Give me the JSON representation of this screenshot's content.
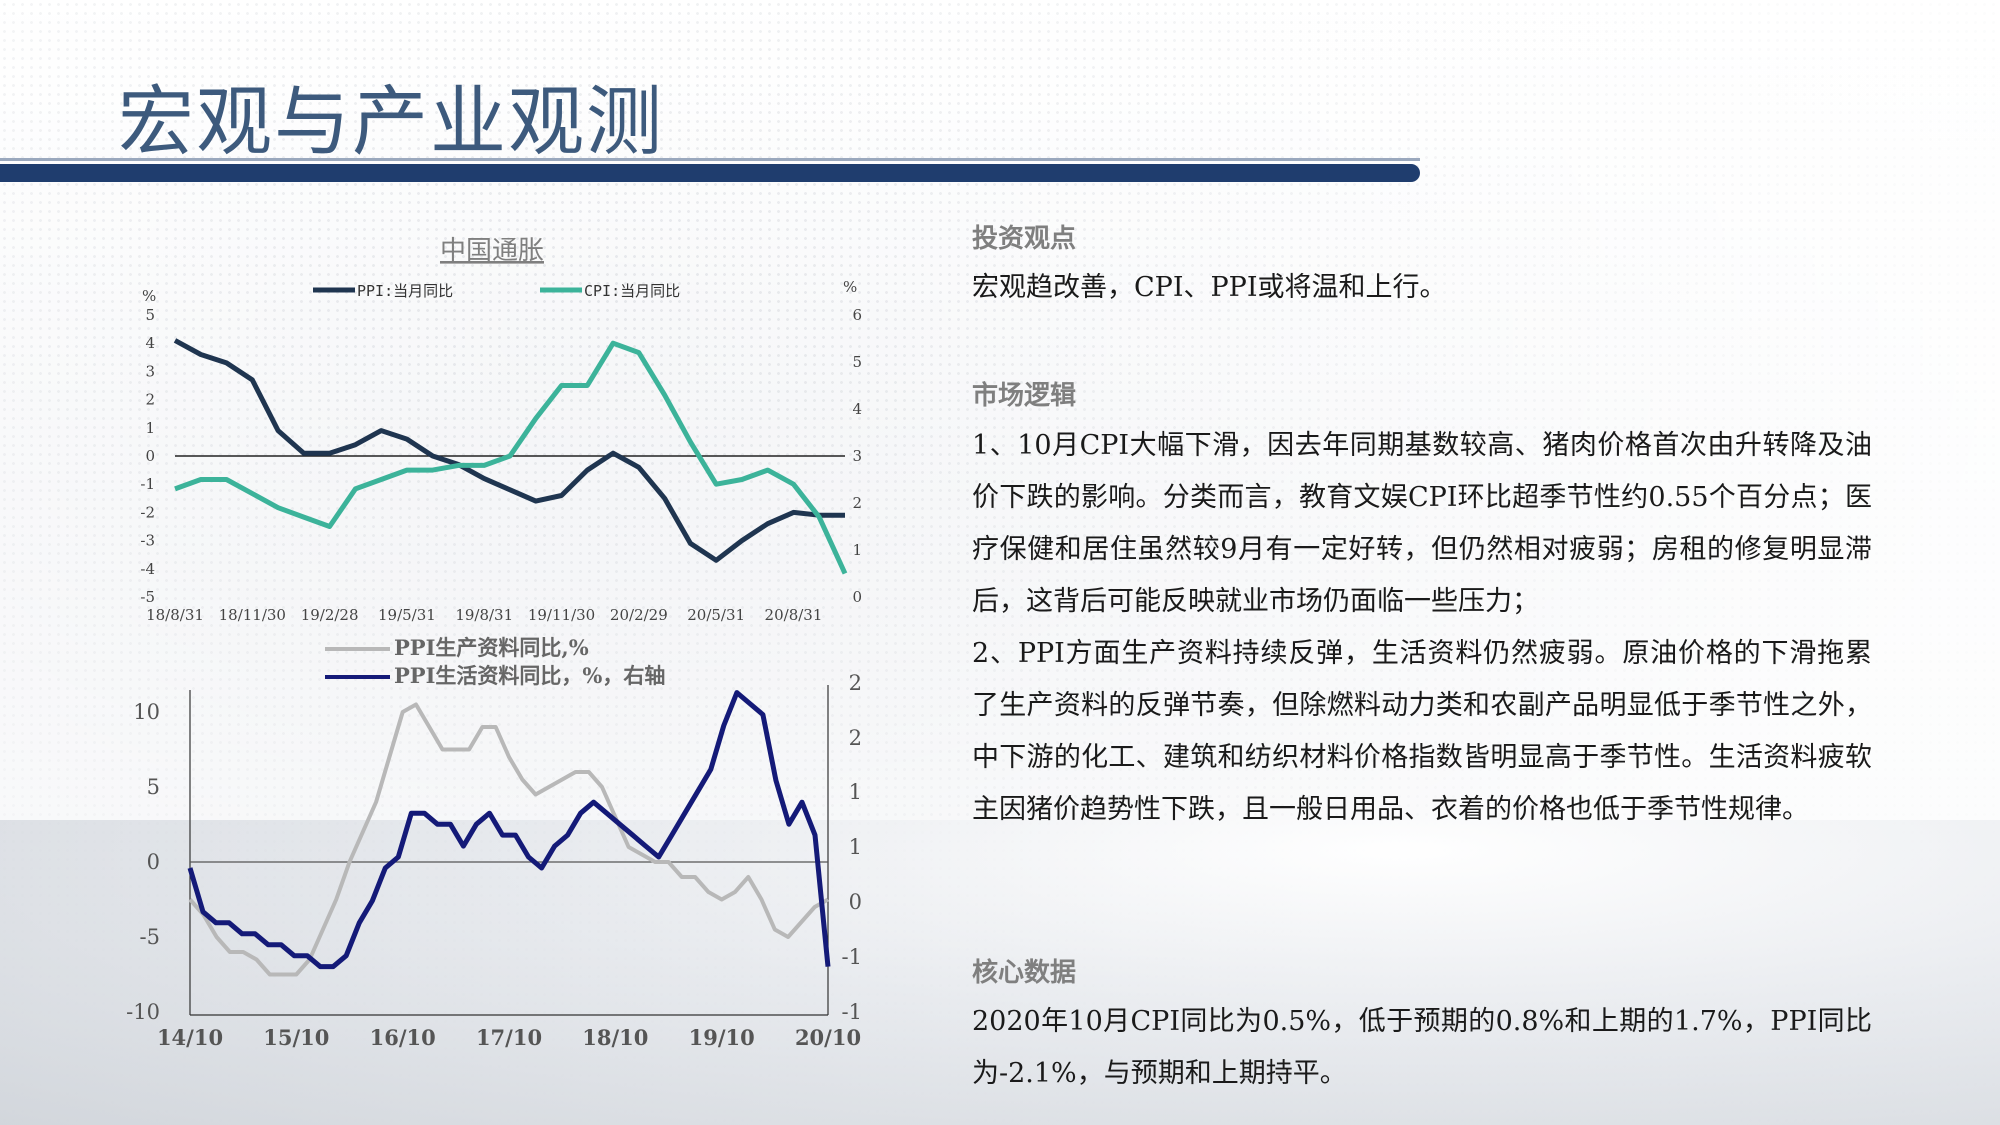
{
  "title": "宏观与产业观测",
  "right_panel": {
    "investment_view": {
      "heading": "投资观点",
      "text": "宏观趋改善，CPI、PPI或将温和上行。"
    },
    "market_logic": {
      "heading": "市场逻辑",
      "p1": "1、10月CPI大幅下滑，因去年同期基数较高、猪肉价格首次由升转降及油价下跌的影响。分类而言，教育文娱CPI环比超季节性约0.55个百分点；医疗保健和居住虽然较9月有一定好转，但仍然相对疲弱；房租的修复明显滞后，这背后可能反映就业市场仍面临一些压力；",
      "p2": "2、PPI方面生产资料持续反弹，生活资料仍然疲弱。原油价格的下滑拖累了生产资料的反弹节奏，但除燃料动力类和农副产品明显低于季节性之外，中下游的化工、建筑和纺织材料价格指数皆明显高于季节性。生活资料疲软主因猪价趋势性下跌，且一般日用品、衣着的价格也低于季节性规律。"
    },
    "core_data": {
      "heading": "核心数据",
      "text": "2020年10月CPI同比为0.5%，低于预期的0.8%和上期的1.7%，PPI同比为-2.1%，与预期和上期持平。"
    }
  },
  "colors": {
    "header_bar": "#1f3d6e",
    "title": "#3d5a7d",
    "ppi_line": "#1f3550",
    "cpi_line": "#3cb39a",
    "producer_line": "#b8b8b8",
    "consumer_line": "#141a78"
  },
  "chart_data": [
    {
      "type": "line",
      "title": "中国通胀",
      "y_left_unit": "%",
      "y_right_unit": "%",
      "ylim_left": [
        -5,
        5
      ],
      "ylim_right": [
        0,
        6
      ],
      "y_left_ticks": [
        "5",
        "4",
        "3",
        "2",
        "1",
        "0",
        "-1",
        "-2",
        "-3",
        "-4",
        "-5"
      ],
      "y_right_ticks": [
        "6",
        "5",
        "4",
        "3",
        "2",
        "1",
        "0"
      ],
      "x_ticks": [
        "18/8/31",
        "18/11/30",
        "19/2/28",
        "19/5/31",
        "19/8/31",
        "19/11/30",
        "20/2/29",
        "20/5/31",
        "20/8/31"
      ],
      "series": [
        {
          "name": "PPI:当月同比",
          "axis": "left",
          "values": [
            4.1,
            3.6,
            3.3,
            2.7,
            0.9,
            0.1,
            0.1,
            0.4,
            0.9,
            0.6,
            0.0,
            -0.3,
            -0.8,
            -1.2,
            -1.6,
            -1.4,
            -0.5,
            0.1,
            -0.4,
            -1.5,
            -3.1,
            -3.7,
            -3.0,
            -2.4,
            -2.0,
            -2.1,
            -2.1
          ]
        },
        {
          "name": "CPI:当月同比",
          "axis": "right",
          "values": [
            2.3,
            2.5,
            2.5,
            2.2,
            1.9,
            1.7,
            1.5,
            2.3,
            2.5,
            2.7,
            2.7,
            2.8,
            2.8,
            3.0,
            3.8,
            4.5,
            4.5,
            5.4,
            5.2,
            4.3,
            3.3,
            2.4,
            2.5,
            2.7,
            2.4,
            1.7,
            0.5
          ]
        }
      ]
    },
    {
      "type": "line",
      "title": "",
      "ylim_left": [
        -10,
        12
      ],
      "ylim_right": [
        -1,
        2
      ],
      "y_left_ticks": [
        "10",
        "5",
        "0",
        "-5",
        "-10"
      ],
      "y_right_ticks": [
        "2",
        "2",
        "1",
        "1",
        "0",
        "-1",
        "-1"
      ],
      "x_ticks": [
        "14/10",
        "15/10",
        "16/10",
        "17/10",
        "18/10",
        "19/10",
        "20/10"
      ],
      "series": [
        {
          "name": "PPI生产资料同比,%",
          "axis": "left",
          "values": [
            -2.5,
            -3.5,
            -5,
            -6,
            -6,
            -6.5,
            -7.5,
            -7.5,
            -7.5,
            -6.5,
            -4.5,
            -2.5,
            0,
            2,
            4,
            7,
            10,
            10.5,
            9,
            7.5,
            7.5,
            7.5,
            9,
            9,
            7,
            5.5,
            4.5,
            5,
            5.5,
            6,
            6,
            5,
            3,
            1,
            0.5,
            0,
            0,
            -1,
            -1,
            -2,
            -2.5,
            -2,
            -1,
            -2.5,
            -4.5,
            -5,
            -4,
            -3,
            -2.5
          ]
        },
        {
          "name": "PPI生活资料同比，%，右轴",
          "axis": "right",
          "values": [
            0.0,
            -0.4,
            -0.5,
            -0.5,
            -0.6,
            -0.6,
            -0.7,
            -0.7,
            -0.8,
            -0.8,
            -0.9,
            -0.9,
            -0.8,
            -0.5,
            -0.3,
            0,
            0.1,
            0.5,
            0.5,
            0.4,
            0.4,
            0.2,
            0.4,
            0.5,
            0.3,
            0.3,
            0.1,
            0.0,
            0.2,
            0.3,
            0.5,
            0.6,
            0.5,
            0.4,
            0.3,
            0.2,
            0.1,
            0.3,
            0.5,
            0.7,
            0.9,
            1.3,
            1.6,
            1.5,
            1.4,
            0.8,
            0.4,
            0.6,
            0.3,
            -0.9
          ]
        }
      ]
    }
  ]
}
